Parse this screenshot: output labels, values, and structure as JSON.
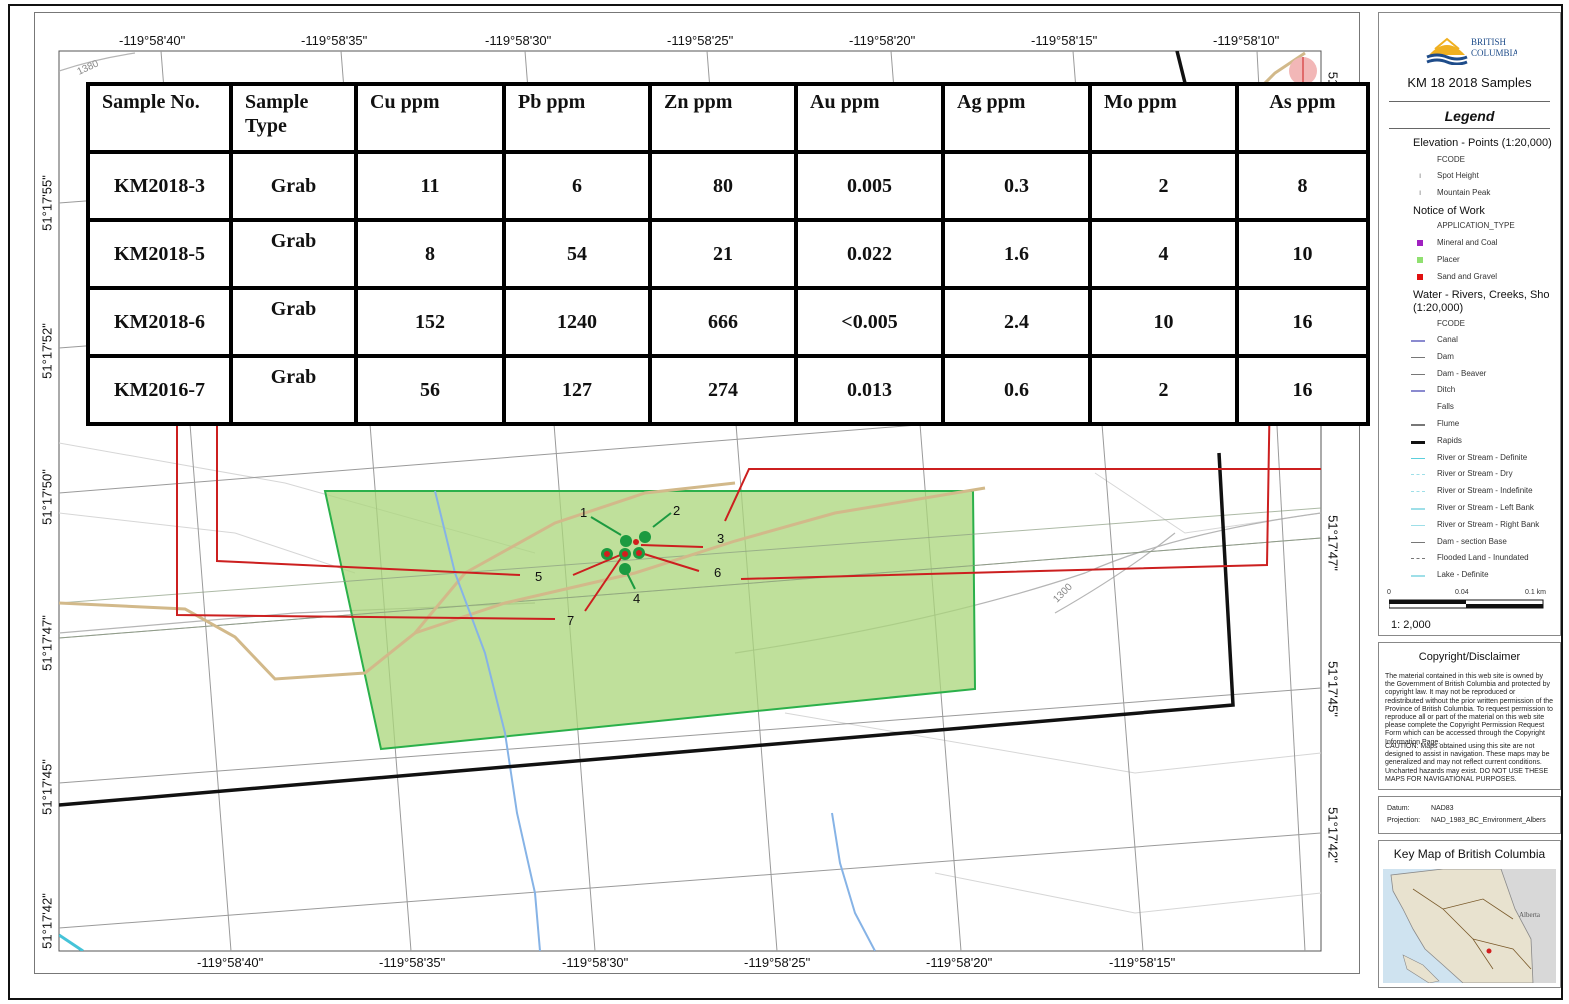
{
  "map": {
    "top_longitudes": [
      "-119°58'40\"",
      "-119°58'35\"",
      "-119°58'30\"",
      "-119°58'25\"",
      "-119°58'20\"",
      "-119°58'15\"",
      "-119°58'10\""
    ],
    "bottom_longitudes": [
      "-119°58'40\"",
      "-119°58'35\"",
      "-119°58'30\"",
      "-119°58'25\"",
      "-119°58'20\"",
      "-119°58'15\""
    ],
    "left_latitudes": [
      "51°17'55\"",
      "51°17'52\"",
      "51°17'50\"",
      "51°17'47\"",
      "51°17'45\"",
      "51°17'42\""
    ],
    "right_latitudes": [
      "51°17'47\"",
      "51°17'45\"",
      "51°17'42\""
    ],
    "right_top_partial": "51",
    "contour_labels": [
      "1380",
      "1300"
    ],
    "site_labels": [
      "1",
      "2",
      "3",
      "4",
      "5",
      "6",
      "7"
    ]
  },
  "table": {
    "headers": [
      "Sample No.",
      "Sample Type",
      "Cu  ppm",
      "Pb   ppm",
      "Zn   ppm",
      "Au   ppm",
      "Ag   ppm",
      "Mo   ppm",
      "As ppm"
    ],
    "rows": [
      [
        "KM2018-3",
        "Grab",
        "11",
        "6",
        "80",
        "0.005",
        "0.3",
        "2",
        "8"
      ],
      [
        "KM2018-5",
        "Grab",
        "8",
        "54",
        "21",
        "0.022",
        "1.6",
        "4",
        "10"
      ],
      [
        "KM2018-6",
        "Grab",
        "152",
        "1240",
        "666",
        "<0.005",
        "2.4",
        "10",
        "16"
      ],
      [
        "KM2016-7",
        "Grab",
        "56",
        "127",
        "274",
        "0.013",
        "0.6",
        "2",
        "16"
      ]
    ]
  },
  "legend": {
    "logo_text_1": "BRITISH",
    "logo_text_2": "COLUMBIA",
    "app_title": "KM 18 2018 Samples",
    "heading": "Legend",
    "elevation_title": "Elevation - Points (1:20,000)",
    "elevation_field": "FCODE",
    "spot_height": "Spot Height",
    "mountain_peak": "Mountain Peak",
    "notice_title": "Notice of Work",
    "notice_field": "APPLICATION_TYPE",
    "mineral_coal": "Mineral and Coal",
    "placer": "Placer",
    "sand_gravel": "Sand and Gravel",
    "water_title_1": "Water - Rivers, Creeks, Sho",
    "water_title_2": "(1:20,000)",
    "water_field": "FCODE",
    "water_items": [
      "Canal",
      "Dam",
      "Dam - Beaver",
      "Ditch",
      "Falls",
      "Flume",
      "Rapids",
      "River or Stream - Definite",
      "River or Stream - Dry",
      "River or Stream - Indefinite",
      "River or Stream - Left Bank",
      "River or Stream - Right Bank",
      "Dam - section Base",
      "Flooded Land - Inundated",
      "Lake - Definite"
    ],
    "water_colors": [
      "#8a8acf",
      "#777777",
      "#777777",
      "#8a8acf",
      "#ffffff",
      "#777777",
      "#111111",
      "#5ccfdc",
      "#9edfe8",
      "#9edfe8",
      "#9edfe8",
      "#9edfe8",
      "#777777",
      "#777777",
      "#9edfe8"
    ],
    "scale_0": "0",
    "scale_1": "0.04",
    "scale_2": "0.1 km",
    "scale_ratio": "1: 2,000",
    "colors": {
      "mineral": "#a020c0",
      "placer": "#90e070",
      "sand": "#e01010"
    }
  },
  "copyright": {
    "title": "Copyright/Disclaimer",
    "para1": "The material contained in this web site is owned by the Government of British Columbia and protected by copyright law. It may not be reproduced or redistributed without the prior written permission of the Province of British Columbia. To request permission to reproduce all or part of the material on this web site please complete the Copyright Permission Request Form which can be accessed through the Copyright Information Page.",
    "para2": "CAUTION: Maps obtained using this site are not designed to assist in navigation. These maps may be generalized and may not reflect current conditions. Uncharted hazards may exist. DO NOT USE THESE MAPS FOR NAVIGATIONAL PURPOSES."
  },
  "datum": {
    "datum_label": "Datum:",
    "datum_value": "NAD83",
    "projection_label": "Projection:",
    "projection_value": "NAD_1983_BC_Environment_Albers"
  },
  "keymap": {
    "title": "Key Map of British Columbia",
    "alberta": "Alberta"
  }
}
